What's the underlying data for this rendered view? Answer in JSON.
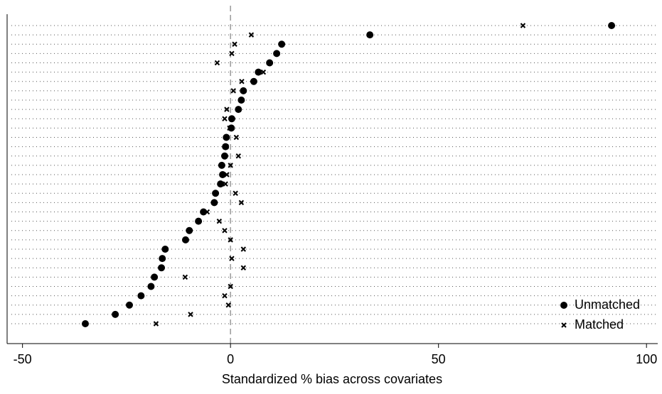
{
  "chart_data": {
    "type": "dot",
    "xlabel": "Standardized % bias across covariates",
    "categories": [
      null,
      null,
      null,
      null,
      null,
      null,
      null,
      null,
      null,
      null,
      null,
      null,
      null,
      null,
      null,
      null,
      null,
      null,
      null,
      null,
      null,
      null,
      null,
      null,
      null,
      null,
      null,
      null,
      null,
      null,
      null,
      null,
      null
    ],
    "series": [
      {
        "name": "Unmatched",
        "color": "#000000",
        "marker": "circle",
        "values": [
          91.6,
          33.5,
          12.3,
          11.1,
          9.4,
          6.7,
          5.6,
          3.1,
          2.6,
          1.9,
          0.3,
          0.2,
          -1.0,
          -1.2,
          -1.4,
          -2.1,
          -1.9,
          -2.4,
          -3.6,
          -3.9,
          -6.5,
          -7.7,
          -9.9,
          -10.8,
          -15.7,
          -16.4,
          -16.6,
          -18.3,
          -19.1,
          -21.5,
          -24.3,
          -27.7,
          -34.9
        ]
      },
      {
        "name": "Matched",
        "color": "#000000",
        "marker": "x",
        "values": [
          70.3,
          5.0,
          1.0,
          0.3,
          -3.2,
          7.9,
          2.7,
          0.7,
          2.6,
          -0.9,
          -1.4,
          -0.2,
          1.4,
          -1.0,
          1.9,
          0.0,
          -0.9,
          -1.2,
          1.2,
          2.6,
          -5.6,
          -2.7,
          -1.4,
          0.0,
          3.1,
          0.3,
          3.1,
          -10.9,
          0.0,
          -1.4,
          -0.5,
          -9.6,
          -17.9
        ]
      }
    ],
    "xlim": [
      -53.7,
      102.7
    ],
    "xticks": [
      -50,
      0,
      50,
      100
    ],
    "reference_line": 0,
    "grid": true,
    "legend": "lower right"
  }
}
